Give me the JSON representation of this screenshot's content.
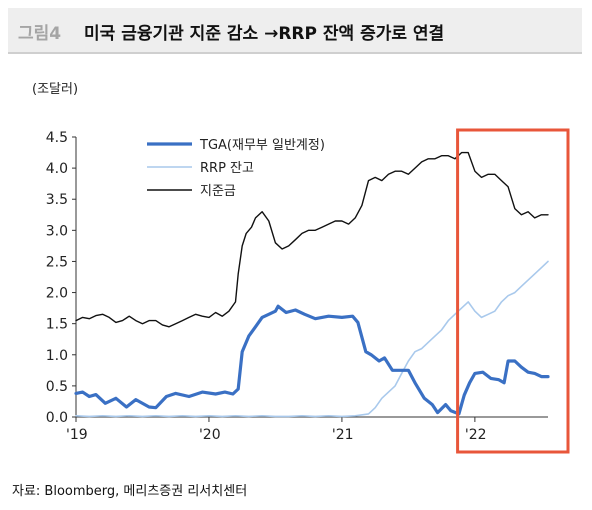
{
  "header": {
    "figure_label": "그림4",
    "title": "미국 금융기관 지준 감소 →RRP 잔액 증가로 연결"
  },
  "footer": {
    "source": "자료: Bloomberg, 메리츠증권 리서치센터"
  },
  "colors": {
    "tga": "#3a70c4",
    "rrp": "#a9c9ec",
    "reserves": "#111111",
    "highlight_box": "#e8563a"
  },
  "chart_data": {
    "type": "line",
    "unit_label": "(조달러)",
    "title": "",
    "xlabel": "",
    "ylabel": "",
    "x_range": [
      2019.0,
      2022.55
    ],
    "ylim": [
      0,
      4.5
    ],
    "yticks": [
      0.0,
      0.5,
      1.0,
      1.5,
      2.0,
      2.5,
      3.0,
      3.5,
      4.0,
      4.5
    ],
    "ytick_labels": [
      "0.0",
      "0.5",
      "1.0",
      "1.5",
      "2.0",
      "2.5",
      "3.0",
      "3.5",
      "4.0",
      "4.5"
    ],
    "xticks": [
      2019,
      2020,
      2021,
      2022
    ],
    "xtick_labels": [
      "'19",
      "'20",
      "'21",
      "'22"
    ],
    "grid": false,
    "legend_position": "top-center",
    "highlight": {
      "x_from": 2021.87,
      "x_to": 2022.55,
      "label": ""
    },
    "series": [
      {
        "name": "TGA(재무부 일반계정)",
        "color": "#3a70c4",
        "points": [
          [
            2019.0,
            0.38
          ],
          [
            2019.05,
            0.4
          ],
          [
            2019.1,
            0.33
          ],
          [
            2019.15,
            0.36
          ],
          [
            2019.22,
            0.22
          ],
          [
            2019.3,
            0.3
          ],
          [
            2019.38,
            0.16
          ],
          [
            2019.45,
            0.28
          ],
          [
            2019.55,
            0.16
          ],
          [
            2019.6,
            0.15
          ],
          [
            2019.68,
            0.33
          ],
          [
            2019.75,
            0.38
          ],
          [
            2019.85,
            0.33
          ],
          [
            2019.95,
            0.4
          ],
          [
            2020.05,
            0.37
          ],
          [
            2020.12,
            0.4
          ],
          [
            2020.18,
            0.37
          ],
          [
            2020.22,
            0.45
          ],
          [
            2020.25,
            1.05
          ],
          [
            2020.3,
            1.3
          ],
          [
            2020.35,
            1.45
          ],
          [
            2020.4,
            1.6
          ],
          [
            2020.45,
            1.65
          ],
          [
            2020.5,
            1.7
          ],
          [
            2020.52,
            1.78
          ],
          [
            2020.58,
            1.68
          ],
          [
            2020.65,
            1.72
          ],
          [
            2020.72,
            1.65
          ],
          [
            2020.8,
            1.58
          ],
          [
            2020.9,
            1.62
          ],
          [
            2021.0,
            1.6
          ],
          [
            2021.08,
            1.62
          ],
          [
            2021.12,
            1.52
          ],
          [
            2021.18,
            1.05
          ],
          [
            2021.22,
            1.0
          ],
          [
            2021.28,
            0.9
          ],
          [
            2021.32,
            0.95
          ],
          [
            2021.38,
            0.75
          ],
          [
            2021.45,
            0.75
          ],
          [
            2021.5,
            0.75
          ],
          [
            2021.55,
            0.55
          ],
          [
            2021.62,
            0.3
          ],
          [
            2021.68,
            0.2
          ],
          [
            2021.72,
            0.07
          ],
          [
            2021.78,
            0.2
          ],
          [
            2021.82,
            0.1
          ],
          [
            2021.88,
            0.05
          ],
          [
            2021.92,
            0.35
          ],
          [
            2021.96,
            0.55
          ],
          [
            2022.0,
            0.7
          ],
          [
            2022.06,
            0.72
          ],
          [
            2022.12,
            0.62
          ],
          [
            2022.18,
            0.6
          ],
          [
            2022.22,
            0.55
          ],
          [
            2022.25,
            0.9
          ],
          [
            2022.3,
            0.9
          ],
          [
            2022.35,
            0.8
          ],
          [
            2022.4,
            0.72
          ],
          [
            2022.45,
            0.7
          ],
          [
            2022.5,
            0.65
          ],
          [
            2022.55,
            0.65
          ]
        ]
      },
      {
        "name": "RRP 잔고",
        "color": "#a9c9ec",
        "points": [
          [
            2019.0,
            0.02
          ],
          [
            2019.1,
            0.01
          ],
          [
            2019.2,
            0.02
          ],
          [
            2019.3,
            0.01
          ],
          [
            2019.4,
            0.02
          ],
          [
            2019.5,
            0.01
          ],
          [
            2019.6,
            0.02
          ],
          [
            2019.7,
            0.01
          ],
          [
            2019.8,
            0.02
          ],
          [
            2019.9,
            0.01
          ],
          [
            2020.0,
            0.02
          ],
          [
            2020.1,
            0.01
          ],
          [
            2020.2,
            0.02
          ],
          [
            2020.3,
            0.01
          ],
          [
            2020.4,
            0.02
          ],
          [
            2020.5,
            0.01
          ],
          [
            2020.6,
            0.01
          ],
          [
            2020.7,
            0.02
          ],
          [
            2020.8,
            0.01
          ],
          [
            2020.9,
            0.02
          ],
          [
            2021.0,
            0.01
          ],
          [
            2021.1,
            0.02
          ],
          [
            2021.2,
            0.05
          ],
          [
            2021.25,
            0.15
          ],
          [
            2021.3,
            0.3
          ],
          [
            2021.35,
            0.4
          ],
          [
            2021.4,
            0.5
          ],
          [
            2021.45,
            0.7
          ],
          [
            2021.5,
            0.9
          ],
          [
            2021.55,
            1.05
          ],
          [
            2021.6,
            1.1
          ],
          [
            2021.65,
            1.2
          ],
          [
            2021.7,
            1.3
          ],
          [
            2021.75,
            1.4
          ],
          [
            2021.8,
            1.55
          ],
          [
            2021.85,
            1.65
          ],
          [
            2021.9,
            1.75
          ],
          [
            2021.95,
            1.85
          ],
          [
            2022.0,
            1.7
          ],
          [
            2022.05,
            1.6
          ],
          [
            2022.1,
            1.65
          ],
          [
            2022.15,
            1.7
          ],
          [
            2022.2,
            1.85
          ],
          [
            2022.25,
            1.95
          ],
          [
            2022.3,
            2.0
          ],
          [
            2022.35,
            2.1
          ],
          [
            2022.4,
            2.2
          ],
          [
            2022.45,
            2.3
          ],
          [
            2022.5,
            2.4
          ],
          [
            2022.55,
            2.5
          ]
        ]
      },
      {
        "name": "지준금",
        "color": "#111111",
        "points": [
          [
            2019.0,
            1.55
          ],
          [
            2019.05,
            1.6
          ],
          [
            2019.1,
            1.58
          ],
          [
            2019.15,
            1.63
          ],
          [
            2019.2,
            1.65
          ],
          [
            2019.25,
            1.6
          ],
          [
            2019.3,
            1.52
          ],
          [
            2019.35,
            1.55
          ],
          [
            2019.4,
            1.62
          ],
          [
            2019.45,
            1.55
          ],
          [
            2019.5,
            1.5
          ],
          [
            2019.55,
            1.55
          ],
          [
            2019.6,
            1.55
          ],
          [
            2019.65,
            1.48
          ],
          [
            2019.7,
            1.45
          ],
          [
            2019.75,
            1.5
          ],
          [
            2019.8,
            1.55
          ],
          [
            2019.85,
            1.6
          ],
          [
            2019.9,
            1.65
          ],
          [
            2019.95,
            1.62
          ],
          [
            2020.0,
            1.6
          ],
          [
            2020.05,
            1.68
          ],
          [
            2020.1,
            1.62
          ],
          [
            2020.15,
            1.7
          ],
          [
            2020.2,
            1.85
          ],
          [
            2020.22,
            2.3
          ],
          [
            2020.25,
            2.75
          ],
          [
            2020.28,
            2.95
          ],
          [
            2020.32,
            3.05
          ],
          [
            2020.35,
            3.2
          ],
          [
            2020.4,
            3.3
          ],
          [
            2020.45,
            3.15
          ],
          [
            2020.5,
            2.8
          ],
          [
            2020.55,
            2.7
          ],
          [
            2020.6,
            2.75
          ],
          [
            2020.65,
            2.85
          ],
          [
            2020.7,
            2.95
          ],
          [
            2020.75,
            3.0
          ],
          [
            2020.8,
            3.0
          ],
          [
            2020.85,
            3.05
          ],
          [
            2020.9,
            3.1
          ],
          [
            2020.95,
            3.15
          ],
          [
            2021.0,
            3.15
          ],
          [
            2021.05,
            3.1
          ],
          [
            2021.1,
            3.2
          ],
          [
            2021.15,
            3.4
          ],
          [
            2021.2,
            3.8
          ],
          [
            2021.25,
            3.85
          ],
          [
            2021.3,
            3.8
          ],
          [
            2021.35,
            3.9
          ],
          [
            2021.4,
            3.95
          ],
          [
            2021.45,
            3.95
          ],
          [
            2021.5,
            3.9
          ],
          [
            2021.55,
            4.0
          ],
          [
            2021.6,
            4.1
          ],
          [
            2021.65,
            4.15
          ],
          [
            2021.7,
            4.15
          ],
          [
            2021.75,
            4.2
          ],
          [
            2021.8,
            4.2
          ],
          [
            2021.85,
            4.15
          ],
          [
            2021.9,
            4.25
          ],
          [
            2021.95,
            4.25
          ],
          [
            2022.0,
            3.95
          ],
          [
            2022.05,
            3.85
          ],
          [
            2022.1,
            3.9
          ],
          [
            2022.15,
            3.9
          ],
          [
            2022.2,
            3.8
          ],
          [
            2022.25,
            3.7
          ],
          [
            2022.3,
            3.35
          ],
          [
            2022.35,
            3.25
          ],
          [
            2022.4,
            3.3
          ],
          [
            2022.45,
            3.2
          ],
          [
            2022.5,
            3.25
          ],
          [
            2022.55,
            3.25
          ]
        ]
      }
    ]
  }
}
